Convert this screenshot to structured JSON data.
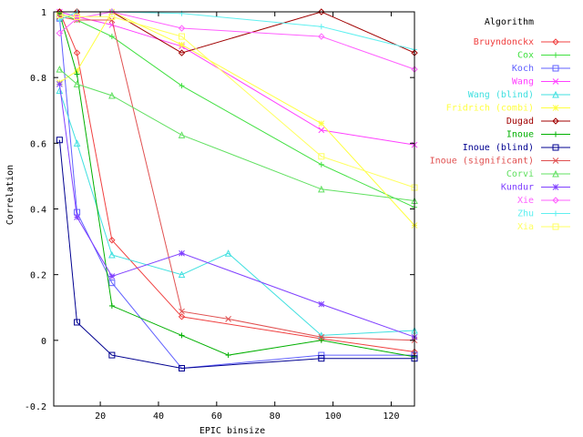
{
  "chart_data": {
    "type": "line",
    "title": "",
    "xlabel": "EPIC binsize",
    "ylabel": "Correlation",
    "xlim": [
      4,
      128
    ],
    "ylim": [
      -0.2,
      1
    ],
    "x_ticks": [
      20,
      40,
      60,
      80,
      100,
      120
    ],
    "y_ticks": [
      -0.2,
      0,
      0.2,
      0.4,
      0.6,
      0.8,
      1
    ],
    "grid": false,
    "legend": {
      "title": "Algorithm",
      "placement": "outside-right"
    },
    "series": [
      {
        "name": "Bruyndonckx",
        "color": "#f04040",
        "marker": "diamond",
        "points": [
          [
            6,
            1.0
          ],
          [
            12,
            0.875
          ],
          [
            24,
            0.305
          ],
          [
            48,
            0.072
          ],
          [
            96,
            0.005
          ],
          [
            128,
            -0.035
          ]
        ]
      },
      {
        "name": "Cox",
        "color": "#40e040",
        "marker": "plus",
        "points": [
          [
            6,
            0.995
          ],
          [
            12,
            0.975
          ],
          [
            24,
            0.925
          ],
          [
            48,
            0.775
          ],
          [
            96,
            0.535
          ],
          [
            128,
            0.405
          ]
        ]
      },
      {
        "name": "Koch",
        "color": "#6060ff",
        "marker": "square",
        "points": [
          [
            6,
            0.98
          ],
          [
            12,
            0.39
          ],
          [
            24,
            0.175
          ],
          [
            48,
            -0.085
          ],
          [
            96,
            -0.045
          ],
          [
            128,
            -0.045
          ]
        ]
      },
      {
        "name": "Wang",
        "color": "#ff40ff",
        "marker": "x",
        "points": [
          [
            6,
            1.0
          ],
          [
            12,
            0.985
          ],
          [
            24,
            0.96
          ],
          [
            48,
            0.895
          ],
          [
            96,
            0.64
          ],
          [
            128,
            0.595
          ]
        ]
      },
      {
        "name": "Wang (blind)",
        "color": "#40e0e0",
        "marker": "triangle",
        "points": [
          [
            6,
            0.76
          ],
          [
            12,
            0.6
          ],
          [
            24,
            0.26
          ],
          [
            48,
            0.2
          ],
          [
            64,
            0.265
          ],
          [
            96,
            0.015
          ],
          [
            128,
            0.03
          ]
        ]
      },
      {
        "name": "Fridrich (combi)",
        "color": "#ffff40",
        "marker": "star",
        "points": [
          [
            6,
            0.785
          ],
          [
            12,
            0.82
          ],
          [
            24,
            1.0
          ],
          [
            48,
            0.9
          ],
          [
            96,
            0.66
          ],
          [
            128,
            0.35
          ]
        ]
      },
      {
        "name": "Dugad",
        "color": "#a00000",
        "marker": "diamond",
        "points": [
          [
            6,
            1.0
          ],
          [
            12,
            1.0
          ],
          [
            24,
            1.0
          ],
          [
            48,
            0.875
          ],
          [
            96,
            1.0
          ],
          [
            128,
            0.875
          ]
        ]
      },
      {
        "name": "Inoue",
        "color": "#00b000",
        "marker": "plus",
        "points": [
          [
            6,
            0.995
          ],
          [
            12,
            0.81
          ],
          [
            24,
            0.105
          ],
          [
            48,
            0.015
          ],
          [
            64,
            -0.045
          ],
          [
            96,
            0.0
          ],
          [
            128,
            -0.05
          ]
        ]
      },
      {
        "name": "Inoue (blind)",
        "color": "#000090",
        "marker": "square",
        "points": [
          [
            6,
            0.61
          ],
          [
            12,
            0.055
          ],
          [
            24,
            -0.045
          ],
          [
            48,
            -0.085
          ],
          [
            96,
            -0.055
          ],
          [
            128,
            -0.055
          ]
        ]
      },
      {
        "name": "Inoue (significant)",
        "color": "#e05050",
        "marker": "x",
        "points": [
          [
            6,
            0.985
          ],
          [
            12,
            0.975
          ],
          [
            24,
            0.975
          ],
          [
            48,
            0.088
          ],
          [
            64,
            0.065
          ],
          [
            96,
            0.01
          ],
          [
            128,
            0.0
          ]
        ]
      },
      {
        "name": "Corvi",
        "color": "#60e060",
        "marker": "triangle",
        "points": [
          [
            6,
            0.825
          ],
          [
            12,
            0.78
          ],
          [
            24,
            0.745
          ],
          [
            48,
            0.625
          ],
          [
            96,
            0.46
          ],
          [
            128,
            0.425
          ]
        ]
      },
      {
        "name": "Kundur",
        "color": "#8040ff",
        "marker": "star",
        "points": [
          [
            6,
            0.78
          ],
          [
            12,
            0.375
          ],
          [
            24,
            0.195
          ],
          [
            48,
            0.265
          ],
          [
            96,
            0.11
          ],
          [
            128,
            0.01
          ]
        ]
      },
      {
        "name": "Xie",
        "color": "#ff60ff",
        "marker": "diamond",
        "points": [
          [
            6,
            0.935
          ],
          [
            12,
            0.98
          ],
          [
            24,
            1.0
          ],
          [
            48,
            0.95
          ],
          [
            96,
            0.925
          ],
          [
            128,
            0.825
          ]
        ]
      },
      {
        "name": "Zhu",
        "color": "#60f0f0",
        "marker": "plus",
        "points": [
          [
            6,
            0.975
          ],
          [
            12,
            1.0
          ],
          [
            24,
            1.0
          ],
          [
            48,
            0.995
          ],
          [
            96,
            0.955
          ],
          [
            128,
            0.885
          ]
        ]
      },
      {
        "name": "Xia",
        "color": "#ffff60",
        "marker": "square",
        "points": [
          [
            6,
            0.99
          ],
          [
            12,
            0.985
          ],
          [
            24,
            0.985
          ],
          [
            48,
            0.925
          ],
          [
            96,
            0.56
          ],
          [
            128,
            0.465
          ]
        ]
      }
    ]
  }
}
